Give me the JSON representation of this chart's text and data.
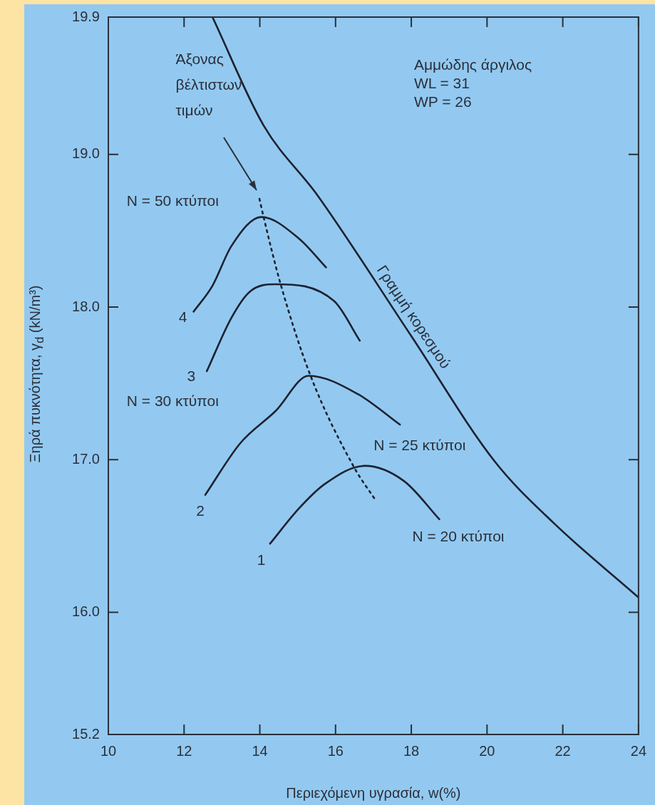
{
  "chart_data": {
    "type": "line",
    "xlabel": "Περιεχόμενη υγρασία, w(%)",
    "ylabel": "Ξηρά πυκνότητα, γ$_{d}$ (kN/m³)",
    "xlim": [
      10,
      24
    ],
    "xticks": [
      10,
      12,
      14,
      16,
      18,
      20,
      22,
      24
    ],
    "ylim": [
      15.2,
      19.9
    ],
    "yticks": [
      15.2,
      {
        "value": 16,
        "label": "16.0"
      },
      {
        "value": 17,
        "label": "17.0"
      },
      {
        "value": 18,
        "label": "18.0"
      },
      {
        "value": 19,
        "label": "19.0"
      },
      19.9
    ],
    "grid": false,
    "marker": "none",
    "line_style": "solid",
    "series": [
      {
        "name": "Γραμμή κορεσμού",
        "color": "#1c2230",
        "x": [
          12.75,
          14.1,
          15.53,
          18.0,
          20.2,
          21.74,
          23.99
        ],
        "values": [
          19.9,
          19.19,
          18.73,
          17.81,
          16.99,
          16.59,
          16.1
        ]
      },
      {
        "color": "#1c2230",
        "x": [
          12.25,
          12.75,
          13.25,
          14.04,
          15.03,
          15.75
        ],
        "values": [
          17.97,
          18.14,
          18.4,
          18.59,
          18.45,
          18.26
        ]
      },
      {
        "color": "#1c2230",
        "x": [
          12.6,
          13.25,
          13.73,
          14.42,
          15.96,
          16.64
        ],
        "values": [
          17.58,
          17.93,
          18.1,
          18.15,
          18.04,
          17.78
        ]
      },
      {
        "color": "#1c2230",
        "x": [
          12.56,
          13.49,
          14.42,
          15.29,
          16.59,
          17.7
        ],
        "values": [
          16.77,
          17.11,
          17.32,
          17.55,
          17.43,
          17.23
        ]
      },
      {
        "color": "#1c2230",
        "x": [
          14.27,
          15.03,
          15.71,
          16.77,
          17.81,
          18.74
        ],
        "values": [
          16.45,
          16.68,
          16.84,
          16.96,
          16.86,
          16.61
        ]
      },
      {
        "color": "#1c2230",
        "line_style": "dotted",
        "x": [
          13.99,
          14.1,
          14.55,
          15.34,
          16.49,
          17.07
        ],
        "values": [
          18.71,
          18.59,
          18.15,
          17.55,
          16.95,
          16.73
        ]
      }
    ],
    "annotations": [
      "Αμμώδης άργιλος",
      "WL = 31",
      "WP = 26",
      "N = 50 κτύποι",
      "4",
      "3",
      "N = 30 κτύποι",
      "2",
      "N = 25 κτύποι",
      "1",
      "N = 20 κτύποι",
      "Άξονας βέλτιστων τιμών"
    ]
  }
}
